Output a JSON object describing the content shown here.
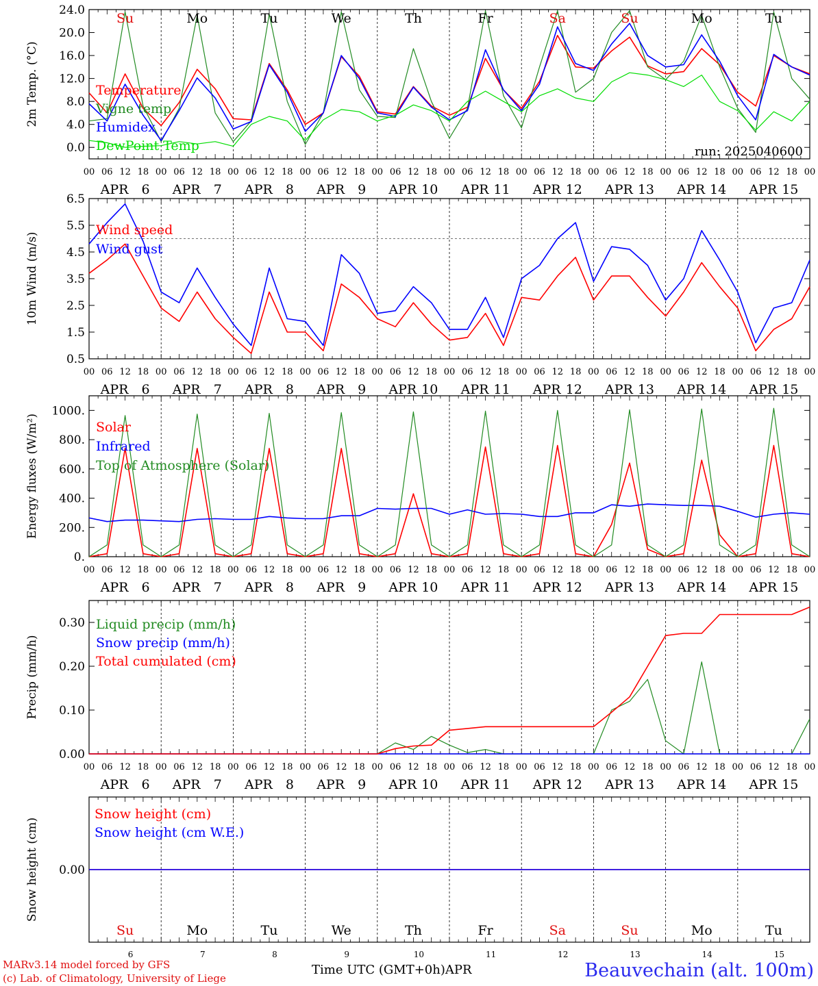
{
  "colors": {
    "red": "#ff0000",
    "green": "#228b22",
    "blue": "#0000ff",
    "lime": "#00dd00",
    "grey": "#555555"
  },
  "run_label": "run: 2025040600",
  "days": [
    {
      "dow": "Su",
      "date": "6",
      "weekend": true
    },
    {
      "dow": "Mo",
      "date": "7",
      "weekend": false
    },
    {
      "dow": "Tu",
      "date": "8",
      "weekend": false
    },
    {
      "dow": "We",
      "date": "9",
      "weekend": false
    },
    {
      "dow": "Th",
      "date": "10",
      "weekend": false
    },
    {
      "dow": "Fr",
      "date": "11",
      "weekend": false
    },
    {
      "dow": "Sa",
      "date": "12",
      "weekend": true
    },
    {
      "dow": "Su",
      "date": "13",
      "weekend": true
    },
    {
      "dow": "Mo",
      "date": "14",
      "weekend": false
    },
    {
      "dow": "Tu",
      "date": "15",
      "weekend": false
    }
  ],
  "month_label": "APR",
  "hour_labels": [
    "00",
    "06",
    "12",
    "18"
  ],
  "footer": {
    "model": "MARv3.14 model forced by GFS",
    "credit": "(c) Lab. of Climatology, University of Liege",
    "time_axis": "Time UTC (GMT+0h)",
    "month": "APR",
    "station": "Beauvechain (alt. 100m)"
  },
  "chart_data": [
    {
      "type": "line",
      "ylabel": "2m Temp. (°C)",
      "ylim": [
        -2,
        24
      ],
      "yticks": [
        "0.0",
        "4.0",
        "8.0",
        "12.0",
        "16.0",
        "20.0",
        "24.0"
      ],
      "hours": [
        0,
        6,
        12,
        18,
        24,
        30,
        36,
        42,
        48,
        54,
        60,
        66,
        72,
        78,
        84,
        90,
        96,
        102,
        108,
        114,
        120,
        126,
        132,
        138,
        144,
        150,
        156,
        162,
        168,
        174,
        180,
        186,
        192,
        198,
        204,
        210,
        216,
        222,
        228,
        234,
        240
      ],
      "series": [
        {
          "name": "Temperature",
          "color": "red",
          "values": [
            9.5,
            6.0,
            12.8,
            6.8,
            3.8,
            7.8,
            13.6,
            10.2,
            5.0,
            4.8,
            14.6,
            10.0,
            4.0,
            6.0,
            15.8,
            12.4,
            6.2,
            5.8,
            10.6,
            7.2,
            5.6,
            7.0,
            15.5,
            10.0,
            6.8,
            11.5,
            19.5,
            14.0,
            13.8,
            16.8,
            19.2,
            14.2,
            12.8,
            13.2,
            17.2,
            14.4,
            9.6,
            7.2,
            16.0,
            14.0,
            12.8
          ]
        },
        {
          "name": "Vigne temp",
          "color": "green",
          "values": [
            4.6,
            5.0,
            23.6,
            7.2,
            1.0,
            6.8,
            23.0,
            6.0,
            1.0,
            4.6,
            23.2,
            8.0,
            0.5,
            6.0,
            23.6,
            10.0,
            5.4,
            5.2,
            17.2,
            8.0,
            1.6,
            6.8,
            23.8,
            9.0,
            3.4,
            14.0,
            23.8,
            9.6,
            12.0,
            20.0,
            23.8,
            14.0,
            11.8,
            15.0,
            23.0,
            14.0,
            6.8,
            2.6,
            23.6,
            12.0,
            8.4
          ]
        },
        {
          "name": "Humidex",
          "color": "blue",
          "values": [
            7.6,
            4.6,
            11.0,
            5.6,
            1.2,
            6.4,
            12.1,
            8.6,
            3.2,
            4.5,
            14.4,
            9.6,
            2.8,
            6.0,
            16.0,
            12.0,
            6.0,
            5.4,
            10.5,
            7.0,
            4.8,
            6.4,
            17.0,
            10.0,
            6.4,
            11.0,
            21.0,
            14.6,
            13.4,
            18.0,
            21.6,
            16.0,
            14.0,
            14.4,
            19.6,
            15.0,
            9.0,
            4.8,
            16.2,
            14.0,
            12.6
          ]
        },
        {
          "name": "DewPoint Temp",
          "color": "lime",
          "values": [
            1.2,
            0.8,
            0.0,
            0.2,
            0.3,
            1.0,
            0.6,
            1.0,
            0.2,
            4.0,
            5.4,
            4.6,
            1.2,
            4.8,
            6.6,
            6.2,
            4.6,
            5.6,
            7.4,
            6.4,
            4.6,
            8.0,
            9.8,
            8.0,
            6.2,
            9.0,
            10.2,
            8.6,
            8.0,
            11.4,
            13.0,
            12.6,
            11.8,
            10.6,
            12.6,
            8.0,
            6.4,
            3.0,
            6.2,
            4.6,
            8.0
          ]
        }
      ]
    },
    {
      "type": "line",
      "ylabel": "10m Wind (m/s)",
      "ylim": [
        0.5,
        6.5
      ],
      "yticks": [
        "0.5",
        "1.5",
        "2.5",
        "3.5",
        "4.5",
        "5.5",
        "6.5"
      ],
      "hours": [
        0,
        6,
        12,
        18,
        24,
        30,
        36,
        42,
        48,
        54,
        60,
        66,
        72,
        78,
        84,
        90,
        96,
        102,
        108,
        114,
        120,
        126,
        132,
        138,
        144,
        150,
        156,
        162,
        168,
        174,
        180,
        186,
        192,
        198,
        204,
        210,
        216,
        222,
        228,
        234,
        240
      ],
      "series": [
        {
          "name": "Wind speed",
          "color": "red",
          "values": [
            3.7,
            4.2,
            4.8,
            3.6,
            2.4,
            1.9,
            3.0,
            2.0,
            1.3,
            0.7,
            3.0,
            1.5,
            1.5,
            0.8,
            3.3,
            2.8,
            2.0,
            1.7,
            2.6,
            1.8,
            1.2,
            1.3,
            2.2,
            1.0,
            2.8,
            2.7,
            3.6,
            4.3,
            2.7,
            3.6,
            3.6,
            2.8,
            2.1,
            3.0,
            4.1,
            3.2,
            2.4,
            0.8,
            1.6,
            2.0,
            3.2
          ]
        },
        {
          "name": "Wind gust",
          "color": "blue",
          "values": [
            4.8,
            5.6,
            6.3,
            4.9,
            3.0,
            2.6,
            3.9,
            2.8,
            1.8,
            1.0,
            3.9,
            2.0,
            1.9,
            1.0,
            4.4,
            3.7,
            2.2,
            2.3,
            3.2,
            2.6,
            1.6,
            1.6,
            2.8,
            1.3,
            3.5,
            4.0,
            5.0,
            5.6,
            3.4,
            4.7,
            4.6,
            4.0,
            2.7,
            3.5,
            5.3,
            4.2,
            3.0,
            1.1,
            2.4,
            2.6,
            4.2
          ]
        }
      ],
      "reference_line": 5.0
    },
    {
      "type": "line",
      "ylabel": "Energy fluxes (W/m²)",
      "ylim": [
        0,
        1100
      ],
      "yticks": [
        "0.",
        "200.",
        "400.",
        "600.",
        "800.",
        "1000."
      ],
      "hours": [
        0,
        6,
        12,
        18,
        24,
        30,
        36,
        42,
        48,
        54,
        60,
        66,
        72,
        78,
        84,
        90,
        96,
        102,
        108,
        114,
        120,
        126,
        132,
        138,
        144,
        150,
        156,
        162,
        168,
        174,
        180,
        186,
        192,
        198,
        204,
        210,
        216,
        222,
        228,
        234,
        240
      ],
      "series": [
        {
          "name": "Solar",
          "color": "red",
          "values": [
            0,
            20,
            740,
            20,
            0,
            20,
            740,
            20,
            0,
            20,
            740,
            20,
            0,
            20,
            740,
            20,
            0,
            20,
            430,
            20,
            0,
            20,
            750,
            20,
            0,
            20,
            760,
            20,
            0,
            220,
            640,
            50,
            0,
            20,
            660,
            150,
            0,
            20,
            760,
            20,
            0
          ]
        },
        {
          "name": "Infrared",
          "color": "blue",
          "values": [
            265,
            240,
            250,
            250,
            245,
            240,
            255,
            260,
            255,
            255,
            275,
            265,
            260,
            260,
            280,
            280,
            330,
            325,
            330,
            330,
            290,
            320,
            290,
            295,
            290,
            275,
            275,
            300,
            300,
            355,
            345,
            360,
            355,
            350,
            350,
            345,
            310,
            270,
            290,
            300,
            290
          ]
        },
        {
          "name": "Top of Atmosphere (Solar)",
          "color": "green",
          "values": [
            0,
            80,
            965,
            80,
            0,
            80,
            975,
            80,
            0,
            80,
            980,
            80,
            0,
            80,
            985,
            80,
            0,
            80,
            990,
            80,
            0,
            80,
            995,
            80,
            0,
            80,
            1000,
            80,
            0,
            80,
            1005,
            80,
            0,
            80,
            1010,
            80,
            0,
            80,
            1015,
            80,
            0
          ]
        }
      ]
    },
    {
      "type": "line",
      "ylabel": "Precip (mm/h)",
      "ylim": [
        0,
        0.35
      ],
      "yticks": [
        "0.00",
        "0.10",
        "0.20",
        "0.30"
      ],
      "hours": [
        0,
        6,
        12,
        18,
        24,
        30,
        36,
        42,
        48,
        54,
        60,
        66,
        72,
        78,
        84,
        90,
        96,
        102,
        108,
        114,
        120,
        126,
        132,
        138,
        144,
        150,
        156,
        162,
        168,
        174,
        180,
        186,
        192,
        198,
        204,
        210,
        216,
        222,
        228,
        234,
        240
      ],
      "series": [
        {
          "name": "Liquid precip (mm/h)",
          "color": "green",
          "values": [
            0,
            0,
            0,
            0,
            0,
            0,
            0,
            0,
            0,
            0,
            0,
            0,
            0,
            0,
            0,
            0,
            0,
            0.025,
            0.01,
            0.04,
            0.02,
            0.003,
            0.01,
            0,
            0,
            0,
            0,
            0,
            0,
            0.1,
            0.12,
            0.17,
            0.03,
            0,
            0.21,
            0,
            0,
            0,
            0,
            0,
            0.08
          ]
        },
        {
          "name": "Snow precip (mm/h)",
          "color": "blue",
          "values": [
            0,
            0,
            0,
            0,
            0,
            0,
            0,
            0,
            0,
            0,
            0,
            0,
            0,
            0,
            0,
            0,
            0,
            0,
            0,
            0,
            0,
            0,
            0,
            0,
            0,
            0,
            0,
            0,
            0,
            0,
            0,
            0,
            0,
            0,
            0,
            0,
            0,
            0,
            0,
            0,
            0
          ]
        },
        {
          "name": "Total cumulated (cm)",
          "color": "red",
          "values": [
            0,
            0,
            0,
            0,
            0,
            0,
            0,
            0,
            0,
            0,
            0,
            0,
            0,
            0,
            0,
            0,
            0,
            0.012,
            0.018,
            0.02,
            0.054,
            0.058,
            0.062,
            0.062,
            0.062,
            0.062,
            0.062,
            0.062,
            0.062,
            0.095,
            0.13,
            0.2,
            0.27,
            0.275,
            0.275,
            0.318,
            0.318,
            0.318,
            0.318,
            0.318,
            0.335
          ]
        }
      ]
    },
    {
      "type": "line",
      "ylabel": "Snow height (cm)",
      "ylim": [
        -1,
        1
      ],
      "yticks": [
        "0.00"
      ],
      "hours": [
        0,
        240
      ],
      "series": [
        {
          "name": "Snow height (cm)",
          "color": "red",
          "values": [
            0,
            0
          ]
        },
        {
          "name": "Snow height (cm W.E.)",
          "color": "blue",
          "values": [
            0,
            0
          ]
        }
      ]
    }
  ]
}
